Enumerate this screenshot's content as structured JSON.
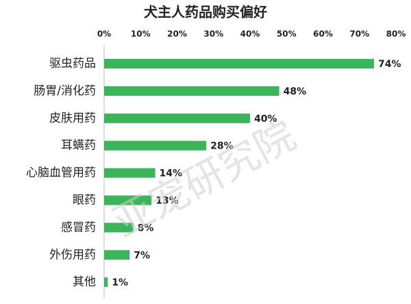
{
  "chart_data": {
    "type": "bar",
    "orientation": "horizontal",
    "title": "犬主人药品购买偏好",
    "categories": [
      "驱虫药品",
      "肠胃/消化药",
      "皮肤用药",
      "耳螨药",
      "心脑血管用药",
      "眼药",
      "感冒药",
      "外伤用药",
      "其他"
    ],
    "values": [
      74,
      48,
      40,
      28,
      14,
      13,
      8,
      7,
      1
    ],
    "value_labels": [
      "74%",
      "48%",
      "40%",
      "28%",
      "14%",
      "13%",
      "8%",
      "7%",
      "1%"
    ],
    "color": "#3bb559",
    "xlim": [
      0,
      80
    ],
    "xticks": [
      {
        "value": 0,
        "label": "0%"
      },
      {
        "value": 10,
        "label": "10%"
      },
      {
        "value": 20,
        "label": "20%"
      },
      {
        "value": 30,
        "label": "30%"
      },
      {
        "value": 40,
        "label": "40%"
      },
      {
        "value": 50,
        "label": "50%"
      },
      {
        "value": 60,
        "label": "60%"
      },
      {
        "value": 70,
        "label": "70%"
      },
      {
        "value": 80,
        "label": "80%"
      }
    ],
    "grid": false,
    "watermark": "亚宠研究院"
  }
}
